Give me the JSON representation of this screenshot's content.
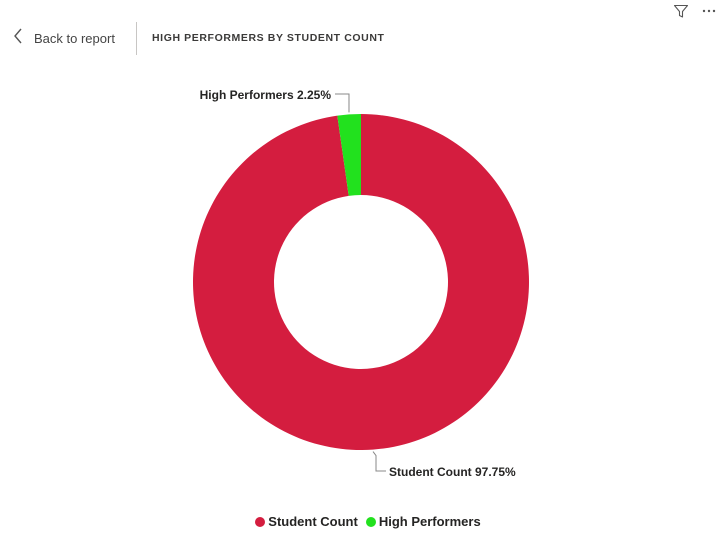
{
  "header": {
    "back_label": "Back to report",
    "title": "HIGH PERFORMERS BY STUDENT COUNT"
  },
  "icons": {
    "filter": "filter-icon",
    "more": "more-options-icon",
    "back": "chevron-left-icon"
  },
  "chart_data": {
    "type": "pie",
    "variant": "donut",
    "title": "HIGH PERFORMERS BY STUDENT COUNT",
    "slices": [
      {
        "name": "Student Count",
        "value": 97.75,
        "label": "Student Count 97.75%",
        "color": "#D41D3F"
      },
      {
        "name": "High Performers",
        "value": 2.25,
        "label": "High Performers 2.25%",
        "color": "#22E11E"
      }
    ],
    "legend": [
      "Student Count",
      "High Performers"
    ],
    "legend_position": "bottom-center"
  }
}
